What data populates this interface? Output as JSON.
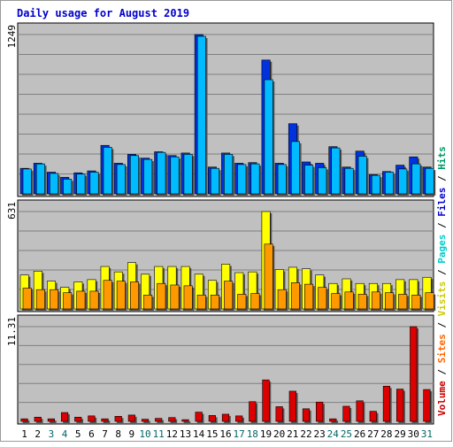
{
  "title": "Daily usage for August 2019",
  "legend": {
    "parts": [
      {
        "text": "Volume",
        "color": "#cc0000"
      },
      {
        "text": " / ",
        "color": "#000000"
      },
      {
        "text": "Sites",
        "color": "#ff6600"
      },
      {
        "text": " / ",
        "color": "#000000"
      },
      {
        "text": "Visits",
        "color": "#cccc00"
      },
      {
        "text": " / ",
        "color": "#000000"
      },
      {
        "text": "Pages",
        "color": "#00cccc"
      },
      {
        "text": " / ",
        "color": "#000000"
      },
      {
        "text": "Files",
        "color": "#0000cc"
      },
      {
        "text": " / ",
        "color": "#000000"
      },
      {
        "text": "Hits",
        "color": "#009966"
      }
    ]
  },
  "colors": {
    "background": "#c0c0c0",
    "hits": "#0033dd",
    "files": "#00bbff",
    "visits": "#ffff00",
    "sites": "#ff9900",
    "volume": "#dd0000",
    "weekend_label": "#006666",
    "title": "#0000cc"
  },
  "chart_data": [
    {
      "type": "bar",
      "panel": "hits-files",
      "ymax_label": "1249",
      "ylim": [
        0,
        1249
      ],
      "categories": [
        "1",
        "2",
        "3",
        "4",
        "5",
        "6",
        "7",
        "8",
        "9",
        "10",
        "11",
        "12",
        "13",
        "14",
        "15",
        "16",
        "17",
        "18",
        "19",
        "20",
        "21",
        "22",
        "23",
        "24",
        "25",
        "26",
        "27",
        "28",
        "29",
        "30",
        "31"
      ],
      "series": [
        {
          "name": "Hits",
          "values": [
            200,
            240,
            170,
            130,
            165,
            180,
            380,
            240,
            310,
            280,
            330,
            300,
            320,
            1249,
            210,
            320,
            240,
            245,
            1049,
            240,
            550,
            250,
            240,
            370,
            210,
            335,
            150,
            175,
            225,
            290,
            210
          ]
        },
        {
          "name": "Files",
          "values": [
            195,
            235,
            160,
            115,
            155,
            170,
            365,
            230,
            300,
            270,
            325,
            290,
            310,
            1235,
            200,
            310,
            230,
            235,
            895,
            230,
            410,
            225,
            205,
            360,
            200,
            295,
            145,
            170,
            195,
            235,
            200
          ]
        }
      ]
    },
    {
      "type": "bar",
      "panel": "visits-sites",
      "ymax_label": "631",
      "ylim": [
        0,
        631
      ],
      "categories": [
        "1",
        "2",
        "3",
        "4",
        "5",
        "6",
        "7",
        "8",
        "9",
        "10",
        "11",
        "12",
        "13",
        "14",
        "15",
        "16",
        "17",
        "18",
        "19",
        "20",
        "21",
        "22",
        "23",
        "24",
        "25",
        "26",
        "27",
        "28",
        "29",
        "30",
        "31"
      ],
      "series": [
        {
          "name": "Visits",
          "values": [
            220,
            245,
            180,
            140,
            175,
            190,
            275,
            240,
            300,
            225,
            275,
            275,
            275,
            225,
            185,
            290,
            235,
            240,
            631,
            255,
            270,
            260,
            220,
            165,
            195,
            165,
            165,
            165,
            190,
            190,
            205
          ]
        },
        {
          "name": "Sites",
          "values": [
            135,
            125,
            125,
            105,
            115,
            115,
            185,
            180,
            175,
            90,
            165,
            155,
            150,
            90,
            90,
            180,
            95,
            100,
            420,
            125,
            170,
            160,
            140,
            100,
            110,
            95,
            110,
            105,
            95,
            90,
            105
          ]
        }
      ]
    },
    {
      "type": "bar",
      "panel": "volume",
      "ymax_label": "11.31",
      "ylim": [
        0,
        11.31
      ],
      "categories": [
        "1",
        "2",
        "3",
        "4",
        "5",
        "6",
        "7",
        "8",
        "9",
        "10",
        "11",
        "12",
        "13",
        "14",
        "15",
        "16",
        "17",
        "18",
        "19",
        "20",
        "21",
        "22",
        "23",
        "24",
        "25",
        "26",
        "27",
        "28",
        "29",
        "30",
        "31"
      ],
      "weekend_days": [
        3,
        4,
        10,
        11,
        17,
        18,
        24,
        25,
        31
      ],
      "series": [
        {
          "name": "Volume",
          "values": [
            0.3,
            0.5,
            0.3,
            1.05,
            0.5,
            0.65,
            0.3,
            0.6,
            0.75,
            0.25,
            0.35,
            0.45,
            0.2,
            1.1,
            0.7,
            0.85,
            0.65,
            2.35,
            4.95,
            1.75,
            3.6,
            1.5,
            2.3,
            0.3,
            1.8,
            2.45,
            1.2,
            4.2,
            3.85,
            11.31,
            3.8
          ]
        }
      ]
    }
  ]
}
